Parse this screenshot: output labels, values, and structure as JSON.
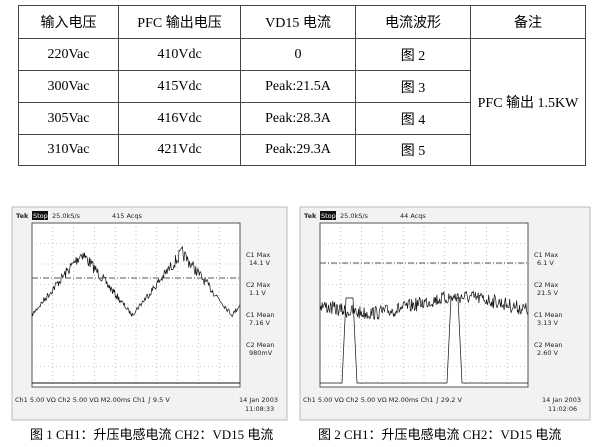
{
  "table": {
    "header": [
      "输入电压",
      "PFC 输出电压",
      "VD15 电流",
      "电流波形",
      "备注"
    ],
    "rows": [
      [
        "220Vac",
        "410Vdc",
        "0",
        "图 2"
      ],
      [
        "300Vac",
        "415Vdc",
        "Peak:21.5A",
        "图 3"
      ],
      [
        "305Vac",
        "416Vdc",
        "Peak:28.3A",
        "图 4"
      ],
      [
        "310Vac",
        "421Vdc",
        "Peak:29.3A",
        "图 5"
      ]
    ],
    "note": "PFC 输出 1.5KW"
  },
  "figures": [
    {
      "scope": {
        "brand": "Tek",
        "state": "Stop",
        "rate": "25.0kS/s",
        "acqs": "415 Acqs",
        "readouts": [
          "C1 Max",
          "14.1 V",
          "C2 Max",
          "1.1 V",
          "C1 Mean",
          "7.16 V",
          "C2 Mean",
          "980mV"
        ],
        "settings": "Ch1  5.00 VΩ  Ch2  5.00 VΩ  M2.00ms  Ch1 ∫  9.5 V",
        "date": "14 Jan 2003",
        "time": "11:08:33"
      },
      "caption": "图 1 CH1：升压电感电流 CH2：VD15 电流"
    },
    {
      "scope": {
        "brand": "Tek",
        "state": "Stop",
        "rate": "25.0kS/s",
        "acqs": "44 Acqs",
        "readouts": [
          "C1 Max",
          "6.1 V",
          "C2 Max",
          "21.5 V",
          "C1 Mean",
          "3.13 V",
          "C2 Mean",
          "2.60 V"
        ],
        "settings": "Ch1  5.00 VΩ  Ch2  5.00 VΩ  M2.00ms  Ch1 ∫  29.2 V",
        "date": "14 Jan 2003",
        "time": "11:02:06"
      },
      "caption": "图 2 CH1：升压电感电流 CH2：VD15 电流"
    }
  ]
}
